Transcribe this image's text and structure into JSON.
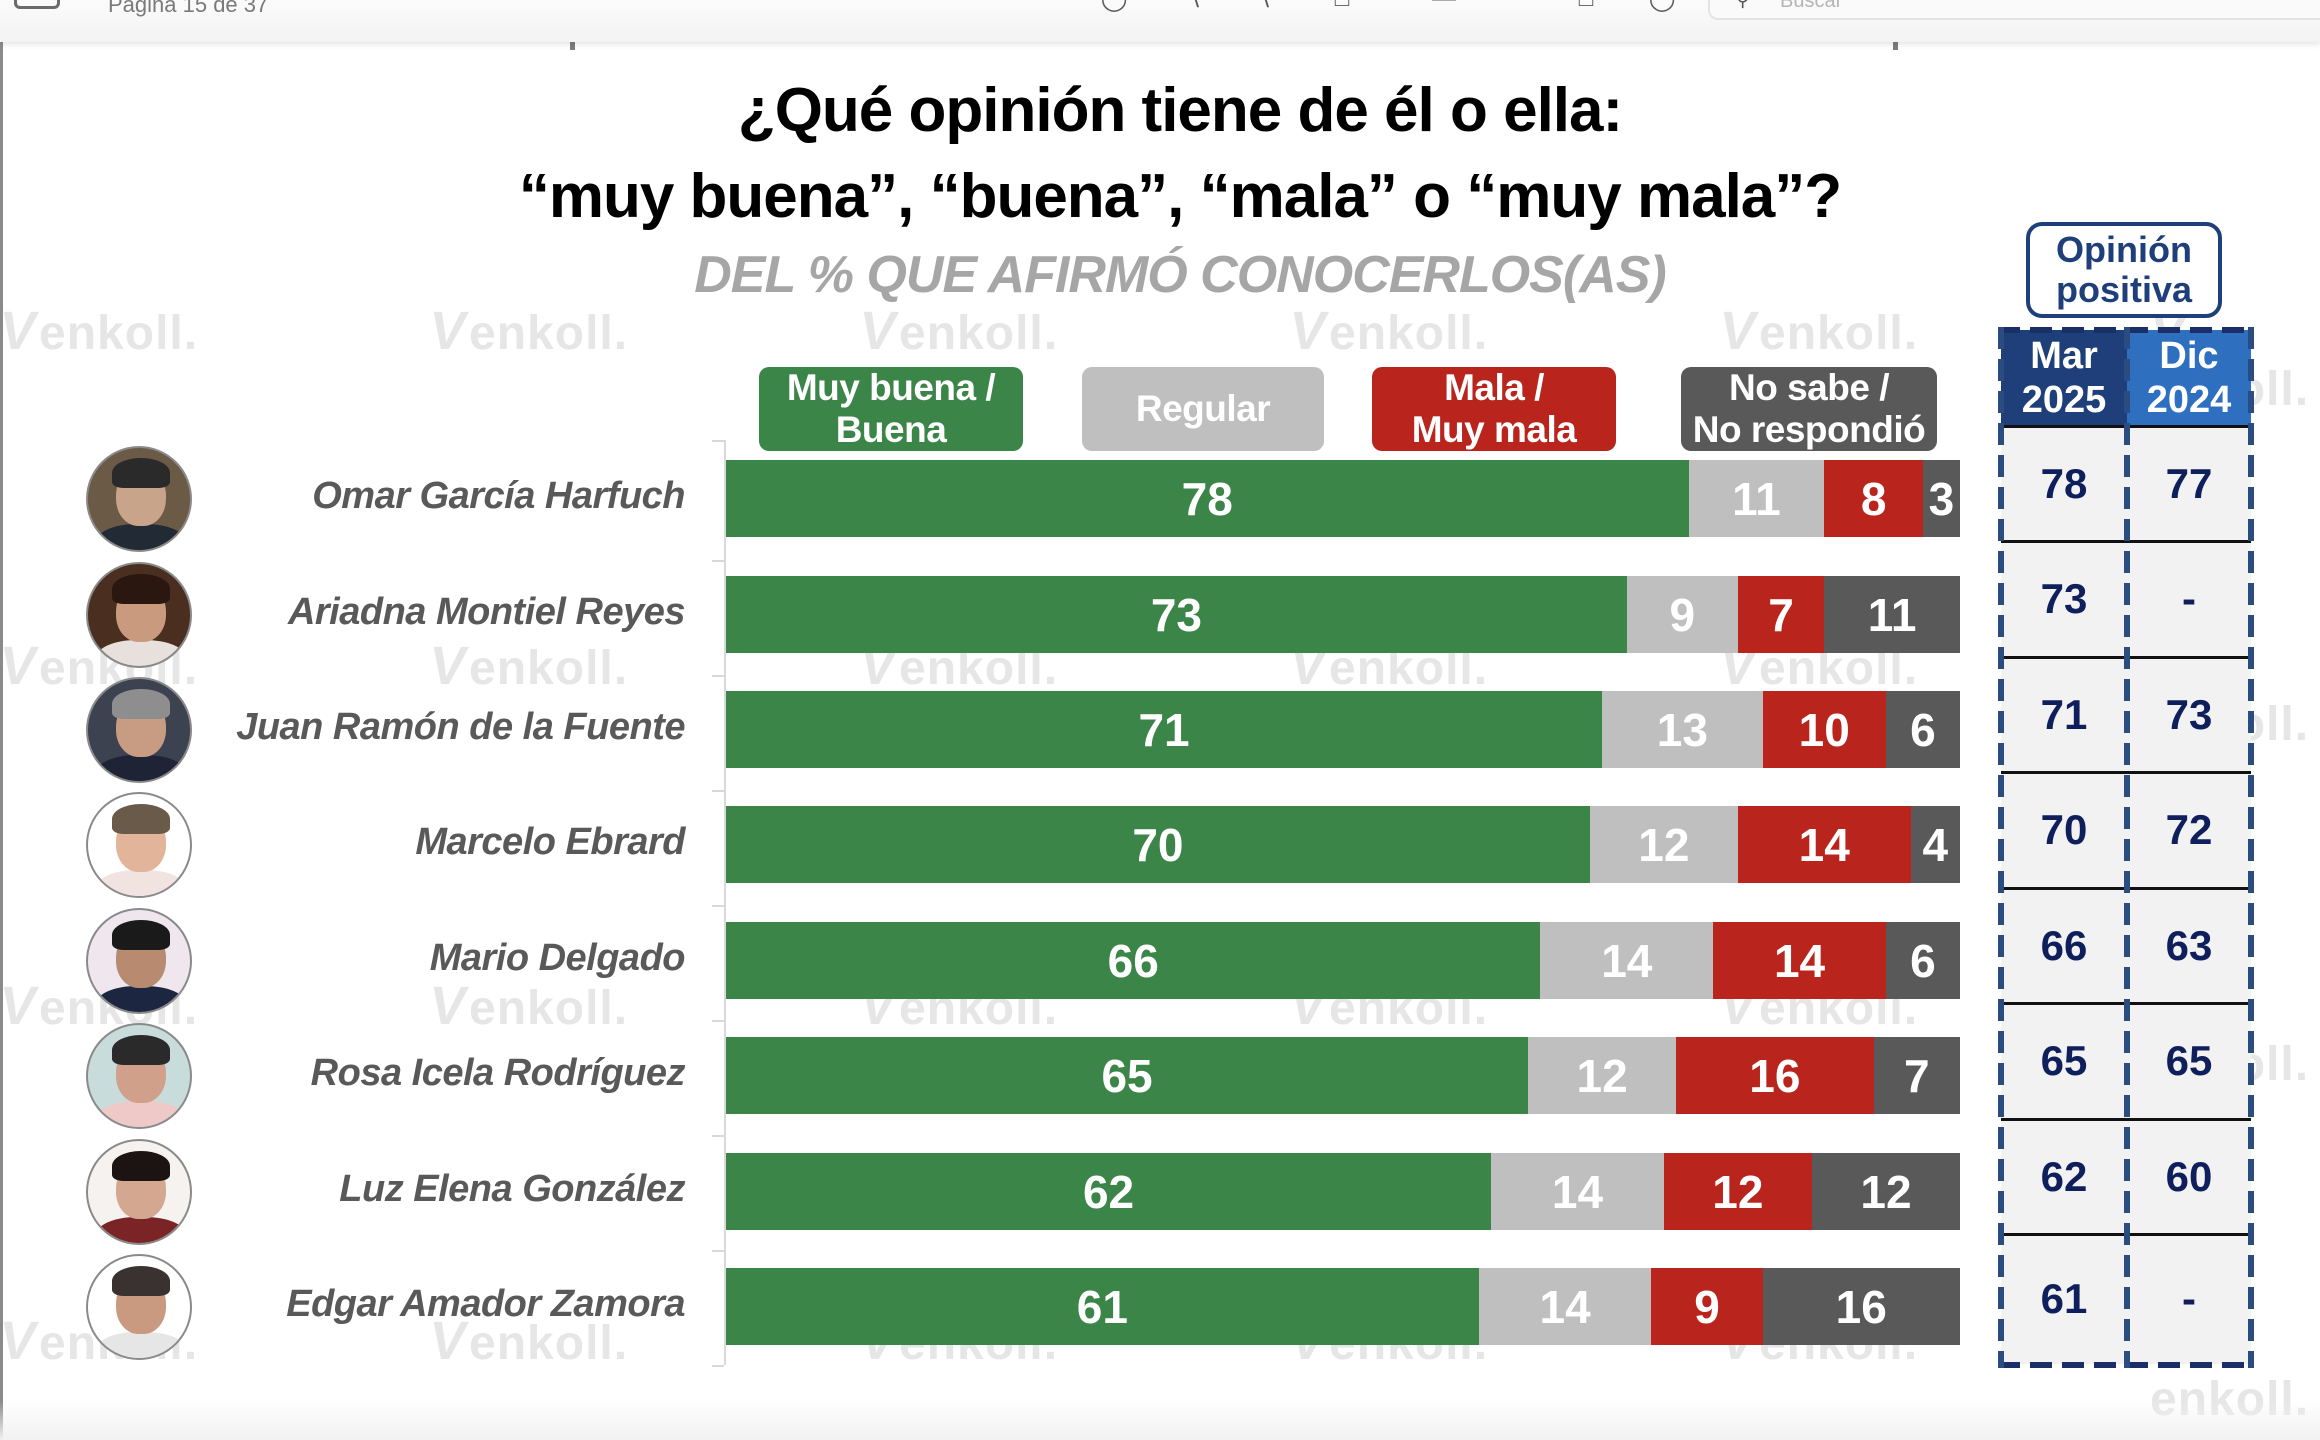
{
  "viewer": {
    "page_indicator": "Página 15 de 37",
    "search_placeholder": "Buscar",
    "icons": [
      "sidebar-icon",
      "info-icon",
      "zoom-out-icon",
      "zoom-in-icon",
      "share-icon",
      "markup-icon",
      "window-icon",
      "rotate-icon"
    ]
  },
  "watermark_text": "enkoll.",
  "colors": {
    "positive": "#3c8548",
    "regular": "#bfbfbf",
    "negative": "#b9251c",
    "no_answer": "#595959",
    "table_header_mar": "#1f3f7a",
    "table_header_dic": "#2f6fbf",
    "table_text": "#0f1f5c"
  },
  "chart_data": {
    "type": "bar",
    "orientation": "horizontal",
    "stacked": true,
    "title_line1": "¿Qué opinión tiene de él o ella:",
    "title_line2": "“muy buena”, “buena”, “mala” o “muy mala”?",
    "subtitle": "DEL % QUE AFIRMÓ CONOCERLOS(AS)",
    "xlabel": "",
    "ylabel": "",
    "xlim": [
      0,
      100
    ],
    "grid": false,
    "legend_position": "top",
    "legend": [
      {
        "key": "positive",
        "label_line1": "Muy buena /",
        "label_line2": "Buena"
      },
      {
        "key": "regular",
        "label_line1": "Regular",
        "label_line2": ""
      },
      {
        "key": "negative",
        "label_line1": "Mala /",
        "label_line2": "Muy mala"
      },
      {
        "key": "no_answer",
        "label_line1": "No sabe /",
        "label_line2": "No respondió"
      }
    ],
    "categories": [
      "Omar García Harfuch",
      "Ariadna Montiel Reyes",
      "Juan Ramón de la Fuente",
      "Marcelo Ebrard",
      "Mario Delgado",
      "Rosa Icela Rodríguez",
      "Luz Elena González",
      "Edgar Amador Zamora"
    ],
    "series": [
      {
        "key": "positive",
        "name": "Muy buena / Buena",
        "values": [
          78,
          73,
          71,
          70,
          66,
          65,
          62,
          61
        ]
      },
      {
        "key": "regular",
        "name": "Regular",
        "values": [
          11,
          9,
          13,
          12,
          14,
          12,
          14,
          14
        ]
      },
      {
        "key": "negative",
        "name": "Mala / Muy mala",
        "values": [
          8,
          7,
          10,
          14,
          14,
          16,
          12,
          9
        ]
      },
      {
        "key": "no_answer",
        "name": "No sabe / No respondió",
        "values": [
          3,
          11,
          6,
          4,
          6,
          7,
          12,
          16
        ]
      }
    ]
  },
  "comparison_table": {
    "title_line1": "Opinión",
    "title_line2": "positiva",
    "columns": [
      {
        "label_line1": "Mar",
        "label_line2": "2025"
      },
      {
        "label_line1": "Dic",
        "label_line2": "2024"
      }
    ],
    "rows": [
      [
        "78",
        "77"
      ],
      [
        "73",
        "-"
      ],
      [
        "71",
        "73"
      ],
      [
        "70",
        "72"
      ],
      [
        "66",
        "63"
      ],
      [
        "65",
        "65"
      ],
      [
        "62",
        "60"
      ],
      [
        "61",
        "-"
      ]
    ]
  },
  "avatars": [
    {
      "icon": "person-photo-icon",
      "bg": "#6b5a45",
      "hair": "#2a2a2a",
      "face": "#c8a58a",
      "torso": "#222a35"
    },
    {
      "icon": "person-photo-icon",
      "bg": "#4a2e20",
      "hair": "#2a1810",
      "face": "#c99a7e",
      "torso": "#e8e0dc"
    },
    {
      "icon": "person-photo-icon",
      "bg": "#3c4250",
      "hair": "#8e8e8e",
      "face": "#c79c82",
      "torso": "#1e2436"
    },
    {
      "icon": "person-photo-icon",
      "bg": "#ffffff",
      "hair": "#6a5a4a",
      "face": "#e2b49a",
      "torso": "#f1e4e0"
    },
    {
      "icon": "person-photo-icon",
      "bg": "#efe6ee",
      "hair": "#1a1a1a",
      "face": "#b88a70",
      "torso": "#1d2640"
    },
    {
      "icon": "person-photo-icon",
      "bg": "#c9dcdc",
      "hair": "#2a2a2a",
      "face": "#d0a08a",
      "torso": "#efc8c8"
    },
    {
      "icon": "person-photo-icon",
      "bg": "#f5f2f0",
      "hair": "#1c1412",
      "face": "#d4a890",
      "torso": "#7a2426"
    },
    {
      "icon": "person-photo-icon",
      "bg": "#ffffff",
      "hair": "#3a3230",
      "face": "#c99a80",
      "torso": "#e6e6e6"
    }
  ]
}
